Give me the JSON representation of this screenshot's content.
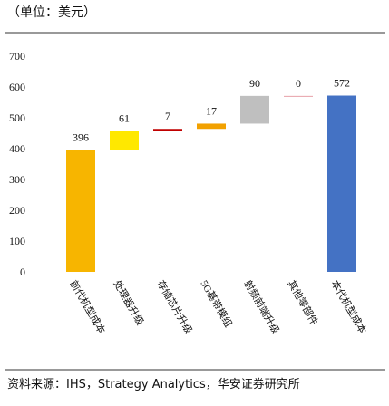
{
  "chart_data": {
    "type": "waterfall",
    "subtitle": "（单位：美元）",
    "source": "资料来源：IHS，Strategy Analytics，华安证券研究所",
    "categories": [
      "前代机型成本",
      "处理器升级",
      "存储芯片升级",
      "5G基带模组",
      "射频前端升级",
      "其他零部件",
      "本代机型成本"
    ],
    "values": [
      396,
      61,
      7,
      17,
      90,
      0,
      572
    ],
    "measures": [
      "total",
      "relative",
      "relative",
      "relative",
      "relative",
      "relative",
      "total"
    ],
    "colors": [
      "#f7b500",
      "#ffe800",
      "#c00000",
      "#f2a100",
      "#bfbfbf",
      "#e6a0a8",
      "#4472c4"
    ],
    "ylim": [
      0,
      700
    ],
    "yticks": [
      0,
      100,
      200,
      300,
      400,
      500,
      600,
      700
    ]
  }
}
